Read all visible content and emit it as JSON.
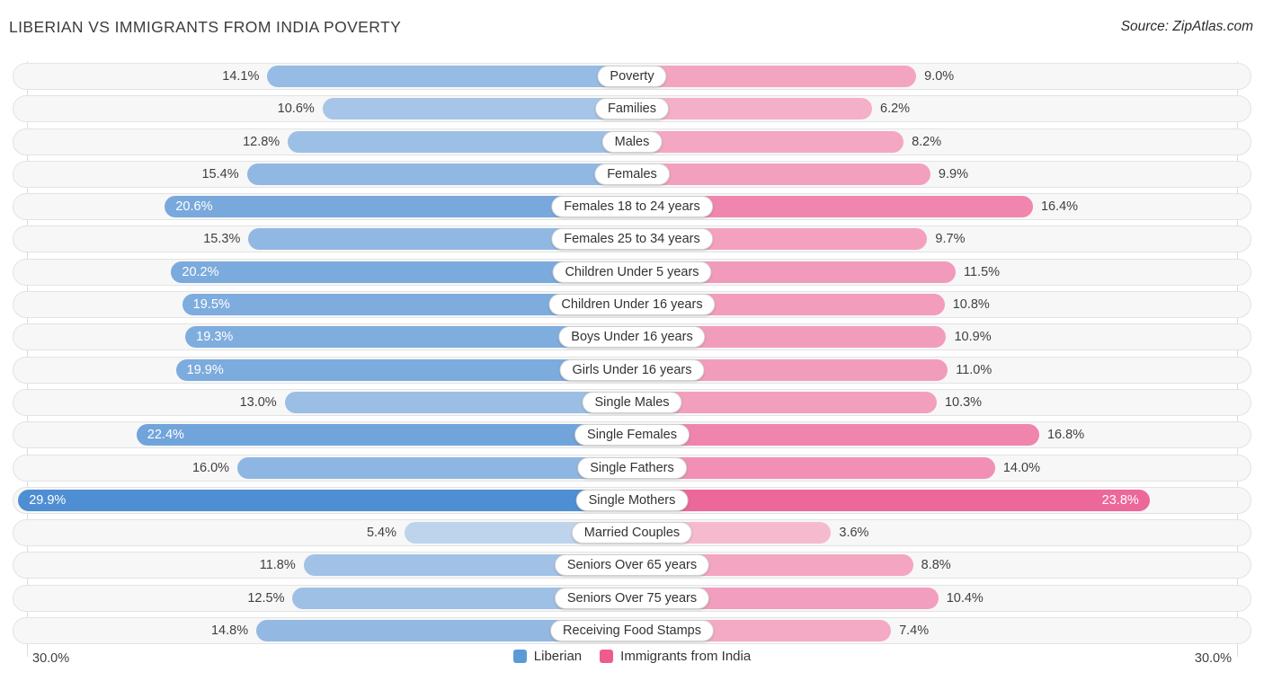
{
  "title": "LIBERIAN VS IMMIGRANTS FROM INDIA POVERTY",
  "source": "Source: ZipAtlas.com",
  "axis": {
    "left_max_label": "30.0%",
    "right_max_label": "30.0%"
  },
  "legend": {
    "items": [
      {
        "label": "Liberian",
        "color": "#5b9bd5"
      },
      {
        "label": "Immigrants from India",
        "color": "#ee5c8f"
      }
    ],
    "position": "bottom-center"
  },
  "chart_data": {
    "type": "bar",
    "orientation": "horizontal-diverging",
    "title": "LIBERIAN VS IMMIGRANTS FROM INDIA POVERTY",
    "xlim": [
      0,
      30
    ],
    "axis_tick_labels": [
      "30.0%",
      "30.0%"
    ],
    "grid": "edge-ticks-only",
    "legend_position": "bottom-center",
    "categories": [
      "Poverty",
      "Families",
      "Males",
      "Females",
      "Females 18 to 24 years",
      "Females 25 to 34 years",
      "Children Under 5 years",
      "Children Under 16 years",
      "Boys Under 16 years",
      "Girls Under 16 years",
      "Single Males",
      "Single Females",
      "Single Fathers",
      "Single Mothers",
      "Married Couples",
      "Seniors Over 65 years",
      "Seniors Over 75 years",
      "Receiving Food Stamps"
    ],
    "series": [
      {
        "name": "Liberian",
        "side": "left",
        "values": [
          14.1,
          10.6,
          12.8,
          15.4,
          20.6,
          15.3,
          20.2,
          19.5,
          19.3,
          19.9,
          13.0,
          22.4,
          16.0,
          29.9,
          5.4,
          11.8,
          12.5,
          14.8
        ],
        "color_light": "#c9dbf0",
        "color_dark": "#4e8ed2"
      },
      {
        "name": "Immigrants from India",
        "side": "right",
        "values": [
          9.0,
          6.2,
          8.2,
          9.9,
          16.4,
          9.7,
          11.5,
          10.8,
          10.9,
          11.0,
          10.3,
          16.8,
          14.0,
          23.8,
          3.6,
          8.8,
          10.4,
          7.4
        ],
        "color_light": "#f6bcd1",
        "color_dark": "#e94f8a"
      }
    ],
    "value_label_format": "{v}%",
    "inside_label_threshold": 19,
    "bar_scale": {
      "base_pct_of_half": 23,
      "pct_per_unit": 2.55,
      "color_t_range": [
        3,
        30
      ]
    }
  }
}
